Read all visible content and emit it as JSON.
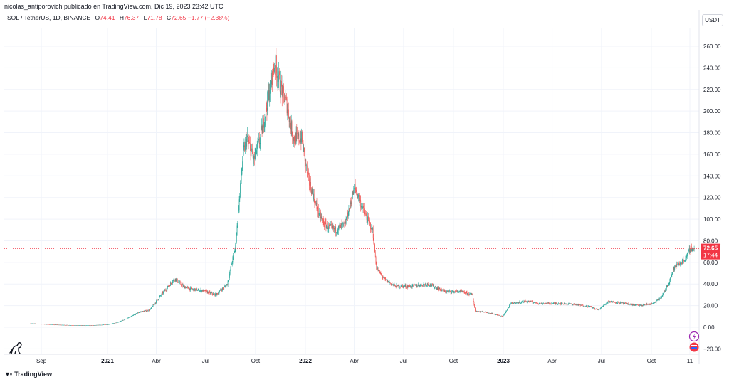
{
  "header": {
    "text": "nicolas_antiporovich publicado en TradingView.com, Dic 19, 2023 23:42 UTC"
  },
  "legend": {
    "symbol": "SOL / TetherUS, 1D, BINANCE",
    "o_label": "O",
    "o": "74.41",
    "h_label": "H",
    "h": "76.37",
    "l_label": "L",
    "l": "71.78",
    "c_label": "C",
    "c": "72.65",
    "change": "−1.77 (−2.38%)"
  },
  "currency_button": "USDT",
  "brand": "TradingView",
  "last_price_label": {
    "price": "72.65",
    "countdown": "17:44"
  },
  "colors": {
    "up": "#26a69a",
    "down": "#ef5350",
    "price_line": "#f23645",
    "grid": "#f0f3fa"
  },
  "icons": [
    "lightning-icon",
    "flag-icon",
    "dino-icon",
    "tradingview-logo-icon"
  ],
  "chart_data": {
    "type": "candlestick",
    "title": "",
    "xlabel": "",
    "ylabel": "",
    "ylim": [
      -25,
      270
    ],
    "y_ticks": [
      -20,
      0,
      20,
      40,
      60,
      80,
      100,
      120,
      140,
      160,
      180,
      200,
      220,
      240,
      260
    ],
    "y_tick_labels": [
      "−20.00",
      "0.00",
      "20.00",
      "40.00",
      "60.00",
      "80.00",
      "100.00",
      "120.00",
      "140.00",
      "160.00",
      "180.00",
      "200.00",
      "220.00",
      "240.00",
      "260.00"
    ],
    "x_tick_labels": [
      {
        "date": "2020-09-01",
        "label": "Sep",
        "bold": false
      },
      {
        "date": "2021-01-01",
        "label": "2021",
        "bold": true
      },
      {
        "date": "2021-04-01",
        "label": "Abr",
        "bold": false
      },
      {
        "date": "2021-07-01",
        "label": "Jul",
        "bold": false
      },
      {
        "date": "2021-10-01",
        "label": "Oct",
        "bold": false
      },
      {
        "date": "2022-01-01",
        "label": "2022",
        "bold": true
      },
      {
        "date": "2022-04-01",
        "label": "Abr",
        "bold": false
      },
      {
        "date": "2022-07-01",
        "label": "Jul",
        "bold": false
      },
      {
        "date": "2022-10-01",
        "label": "Oct",
        "bold": false
      },
      {
        "date": "2023-01-01",
        "label": "2023",
        "bold": true
      },
      {
        "date": "2023-04-01",
        "label": "Abr",
        "bold": false
      },
      {
        "date": "2023-07-01",
        "label": "Jul",
        "bold": false
      },
      {
        "date": "2023-10-01",
        "label": "Oct",
        "bold": false
      },
      {
        "date": "2023-12-11",
        "label": "11",
        "bold": false
      }
    ],
    "grid": true,
    "last_price": 72.65,
    "series": [
      {
        "name": "SOL / TetherUS",
        "x": [
          "2020-08-12",
          "2020-09-01",
          "2020-10-01",
          "2020-11-01",
          "2020-12-01",
          "2021-01-01",
          "2021-01-20",
          "2021-02-10",
          "2021-03-01",
          "2021-03-20",
          "2021-04-10",
          "2021-05-05",
          "2021-05-20",
          "2021-06-05",
          "2021-06-25",
          "2021-07-20",
          "2021-08-10",
          "2021-08-25",
          "2021-09-08",
          "2021-09-15",
          "2021-09-28",
          "2021-10-10",
          "2021-10-25",
          "2021-11-06",
          "2021-11-15",
          "2021-11-28",
          "2021-12-10",
          "2021-12-25",
          "2022-01-05",
          "2022-01-22",
          "2022-02-05",
          "2022-02-25",
          "2022-03-15",
          "2022-04-02",
          "2022-04-20",
          "2022-05-05",
          "2022-05-12",
          "2022-05-25",
          "2022-06-15",
          "2022-07-15",
          "2022-08-15",
          "2022-09-15",
          "2022-10-15",
          "2022-11-05",
          "2022-11-10",
          "2022-12-01",
          "2022-12-31",
          "2023-01-15",
          "2023-02-15",
          "2023-03-10",
          "2023-04-15",
          "2023-05-15",
          "2023-06-10",
          "2023-06-25",
          "2023-07-14",
          "2023-08-10",
          "2023-09-10",
          "2023-10-05",
          "2023-10-20",
          "2023-11-01",
          "2023-11-12",
          "2023-11-25",
          "2023-12-05",
          "2023-12-12",
          "2023-12-19"
        ],
        "values": [
          3.5,
          3.0,
          2.2,
          1.8,
          1.6,
          2.5,
          4.5,
          9,
          14,
          16,
          30,
          45,
          38,
          35,
          34,
          30,
          40,
          75,
          160,
          175,
          155,
          175,
          215,
          245,
          225,
          205,
          175,
          175,
          140,
          110,
          95,
          90,
          95,
          130,
          105,
          90,
          55,
          45,
          38,
          38,
          40,
          33,
          33,
          30,
          15,
          14,
          10,
          22,
          24,
          22,
          22,
          21,
          19,
          16,
          24,
          22,
          20,
          22,
          28,
          40,
          55,
          60,
          65,
          73,
          72.65
        ]
      }
    ]
  }
}
